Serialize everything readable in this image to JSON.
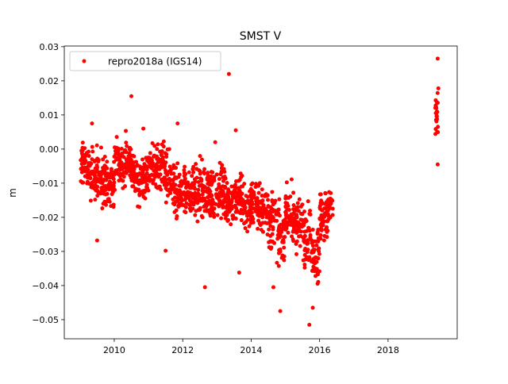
{
  "chart_data": {
    "type": "scatter",
    "title": "SMST V",
    "xlabel": "",
    "ylabel": "m",
    "xlim": [
      2008.54,
      2020.02
    ],
    "ylim": [
      -0.0556,
      0.0302
    ],
    "xticks": [
      2010,
      2012,
      2014,
      2016,
      2018
    ],
    "xtick_labels": [
      "2010",
      "2012",
      "2014",
      "2016",
      "2018"
    ],
    "yticks": [
      0.03,
      0.02,
      0.01,
      0.0,
      -0.01,
      -0.02,
      -0.03,
      -0.04,
      -0.05
    ],
    "ytick_labels": [
      "0.03",
      "0.02",
      "0.01",
      "0.00",
      "−0.01",
      "−0.02",
      "−0.03",
      "−0.04",
      "−0.05"
    ],
    "grid": false,
    "legend": {
      "position": "top-left",
      "entries": [
        "repro2018a (IGS14)"
      ]
    },
    "series": [
      {
        "name": "repro2018a (IGS14)",
        "color": "#ff0000",
        "note_trend": "quarterly windows: [start_year, mean_m, spread_m, point_count]",
        "trend": [
          [
            2009.0,
            -0.005,
            0.006,
            50
          ],
          [
            2009.25,
            -0.007,
            0.007,
            50
          ],
          [
            2009.5,
            -0.009,
            0.008,
            50
          ],
          [
            2009.75,
            -0.01,
            0.006,
            50
          ],
          [
            2010.0,
            -0.004,
            0.007,
            50
          ],
          [
            2010.25,
            -0.004,
            0.007,
            50
          ],
          [
            2010.5,
            -0.008,
            0.007,
            50
          ],
          [
            2010.75,
            -0.008,
            0.006,
            50
          ],
          [
            2011.0,
            -0.005,
            0.006,
            50
          ],
          [
            2011.25,
            -0.006,
            0.007,
            50
          ],
          [
            2011.5,
            -0.01,
            0.008,
            50
          ],
          [
            2011.75,
            -0.013,
            0.007,
            50
          ],
          [
            2012.0,
            -0.012,
            0.007,
            50
          ],
          [
            2012.25,
            -0.013,
            0.007,
            50
          ],
          [
            2012.5,
            -0.012,
            0.008,
            50
          ],
          [
            2012.75,
            -0.013,
            0.007,
            50
          ],
          [
            2013.0,
            -0.012,
            0.007,
            50
          ],
          [
            2013.25,
            -0.015,
            0.007,
            50
          ],
          [
            2013.5,
            -0.014,
            0.008,
            50
          ],
          [
            2013.75,
            -0.017,
            0.007,
            50
          ],
          [
            2014.0,
            -0.016,
            0.007,
            50
          ],
          [
            2014.25,
            -0.018,
            0.007,
            50
          ],
          [
            2014.5,
            -0.021,
            0.008,
            50
          ],
          [
            2014.75,
            -0.025,
            0.007,
            50
          ],
          [
            2015.0,
            -0.02,
            0.008,
            50
          ],
          [
            2015.25,
            -0.022,
            0.007,
            50
          ],
          [
            2015.5,
            -0.025,
            0.008,
            50
          ],
          [
            2015.75,
            -0.03,
            0.008,
            50
          ],
          [
            2016.0,
            -0.02,
            0.007,
            50
          ],
          [
            2016.15,
            -0.017,
            0.006,
            30
          ],
          [
            2019.38,
            0.009,
            0.006,
            25
          ]
        ],
        "outliers": [
          [
            2010.5,
            0.0155
          ],
          [
            2013.35,
            0.022
          ],
          [
            2013.55,
            0.0055
          ],
          [
            2012.65,
            -0.0405
          ],
          [
            2014.85,
            -0.0475
          ],
          [
            2015.7,
            -0.0515
          ],
          [
            2015.8,
            -0.0465
          ],
          [
            2019.45,
            0.0265
          ],
          [
            2011.5,
            -0.0298
          ],
          [
            2009.5,
            -0.0268
          ],
          [
            2013.65,
            -0.0362
          ],
          [
            2014.65,
            -0.0405
          ],
          [
            2012.95,
            0.002
          ],
          [
            2011.85,
            0.0075
          ],
          [
            2019.45,
            -0.0045
          ],
          [
            2019.47,
            0.0178
          ],
          [
            2009.35,
            0.0075
          ],
          [
            2010.85,
            0.006
          ]
        ]
      }
    ]
  }
}
